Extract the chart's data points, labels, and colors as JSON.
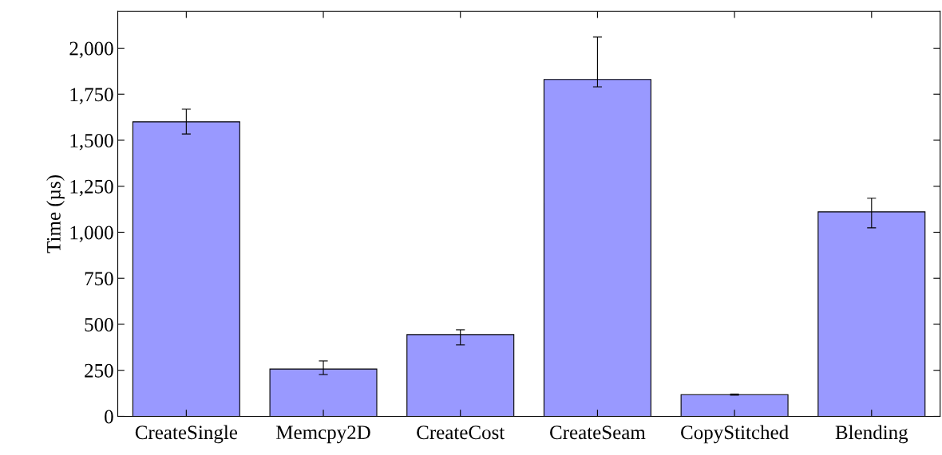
{
  "chart_data": {
    "type": "bar",
    "ylabel": "Time (µs)",
    "categories": [
      "CreateSingle",
      "Memcpy2D",
      "CreateCost",
      "CreateSeam",
      "CopyStitched",
      "Blending"
    ],
    "values": [
      1600,
      257,
      444,
      1830,
      118,
      1111
    ],
    "errors": [
      [
        1534,
        1669
      ],
      [
        227,
        301
      ],
      [
        388,
        470
      ],
      [
        1790,
        2061
      ],
      [
        115,
        121
      ],
      [
        1024,
        1185
      ]
    ],
    "color": "#9999ff",
    "ylim": [
      0,
      2200
    ],
    "yticks": [
      {
        "value": 0,
        "label": "0"
      },
      {
        "value": 250,
        "label": "250"
      },
      {
        "value": 500,
        "label": "500"
      },
      {
        "value": 750,
        "label": "750"
      },
      {
        "value": 1000,
        "label": "1,000"
      },
      {
        "value": 1250,
        "label": "1,250"
      },
      {
        "value": 1500,
        "label": "1,500"
      },
      {
        "value": 1750,
        "label": "1,750"
      },
      {
        "value": 2000,
        "label": "2,000"
      }
    ],
    "grid": false,
    "legend": false
  }
}
